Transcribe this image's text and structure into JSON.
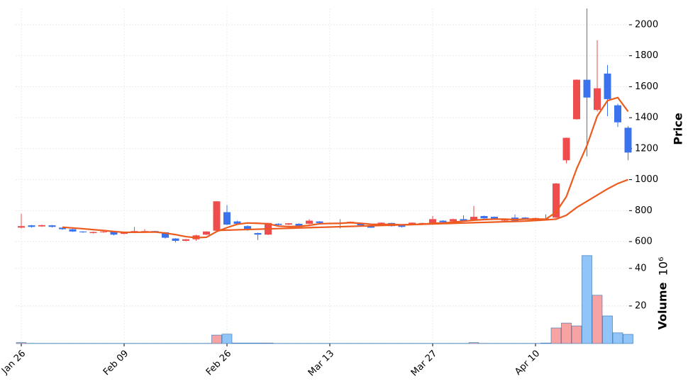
{
  "chart_data": {
    "type": "candlestick",
    "categories": [
      "Jan 26",
      null,
      null,
      null,
      null,
      null,
      null,
      null,
      null,
      null,
      "Feb 09",
      null,
      null,
      null,
      null,
      null,
      null,
      null,
      null,
      null,
      "Feb 26",
      null,
      null,
      null,
      null,
      null,
      null,
      null,
      null,
      null,
      "Mar 13",
      null,
      null,
      null,
      null,
      null,
      null,
      null,
      null,
      null,
      "Mar 27",
      null,
      null,
      null,
      null,
      null,
      null,
      null,
      null,
      null,
      "Apr 10",
      null,
      null,
      null,
      null,
      null,
      null,
      null,
      null,
      null
    ],
    "open": [
      690,
      705,
      698,
      705,
      690,
      680,
      665,
      655,
      660,
      662,
      650,
      662,
      665,
      668,
      660,
      620,
      605,
      615,
      645,
      670,
      790,
      730,
      700,
      655,
      645,
      715,
      710,
      715,
      715,
      730,
      718,
      720,
      722,
      715,
      705,
      705,
      720,
      705,
      712,
      715,
      720,
      735,
      730,
      745,
      740,
      765,
      760,
      735,
      755,
      755,
      742,
      748,
      755,
      1125,
      1390,
      1645,
      1450,
      1685,
      1480,
      1335
    ],
    "high": [
      780,
      708,
      710,
      708,
      692,
      682,
      667,
      664,
      668,
      664,
      662,
      695,
      680,
      670,
      662,
      622,
      617,
      645,
      668,
      862,
      835,
      735,
      705,
      658,
      722,
      718,
      720,
      718,
      745,
      732,
      722,
      745,
      730,
      718,
      708,
      724,
      722,
      708,
      724,
      722,
      765,
      738,
      748,
      770,
      830,
      768,
      762,
      748,
      775,
      758,
      755,
      775,
      978,
      1272,
      1648,
      2105,
      1900,
      1740,
      1490,
      1345
    ],
    "low": [
      685,
      690,
      695,
      692,
      676,
      662,
      657,
      652,
      657,
      640,
      647,
      660,
      662,
      659,
      620,
      595,
      602,
      605,
      642,
      668,
      705,
      712,
      670,
      610,
      642,
      705,
      706,
      692,
      712,
      718,
      715,
      685,
      719,
      702,
      687,
      702,
      697,
      692,
      709,
      712,
      717,
      722,
      727,
      732,
      737,
      747,
      742,
      732,
      732,
      739,
      739,
      737,
      752,
      1105,
      1388,
      1150,
      1440,
      1410,
      1340,
      1125
    ],
    "close": [
      700,
      695,
      706,
      695,
      680,
      665,
      660,
      662,
      665,
      645,
      660,
      668,
      668,
      662,
      625,
      605,
      615,
      640,
      665,
      860,
      710,
      715,
      680,
      645,
      720,
      708,
      718,
      695,
      735,
      720,
      720,
      722,
      728,
      705,
      690,
      722,
      700,
      695,
      722,
      720,
      745,
      725,
      745,
      735,
      760,
      750,
      745,
      745,
      735,
      742,
      752,
      740,
      975,
      1270,
      1645,
      1530,
      1590,
      1520,
      1370,
      1175
    ],
    "up_color": "#ef4d4d",
    "down_color": "#3b73ef",
    "ylim": [
      550,
      2105
    ],
    "yticks": [
      600,
      800,
      1000,
      1200,
      1400,
      1600,
      1800,
      2000
    ],
    "ylabel": "Price",
    "grid": true,
    "moving_averages": [
      {
        "color": "#ec5a1e",
        "values": [
          null,
          null,
          null,
          null,
          693,
          688,
          683,
          677,
          672,
          665,
          660,
          660,
          661,
          662,
          655,
          645,
          632,
          625,
          628,
          665,
          690,
          712,
          720,
          718,
          715,
          700,
          697,
          698,
          705,
          715,
          717,
          718,
          722,
          718,
          712,
          710,
          712,
          708,
          710,
          712,
          718,
          720,
          725,
          732,
          738,
          742,
          745,
          745,
          742,
          745,
          745,
          745,
          790,
          890,
          1070,
          1220,
          1410,
          1510,
          1530,
          1440
        ]
      },
      {
        "color": "#ec5a1e",
        "values": [
          null,
          null,
          null,
          null,
          null,
          null,
          null,
          null,
          null,
          null,
          null,
          null,
          null,
          null,
          null,
          null,
          null,
          null,
          null,
          672,
          674,
          676,
          678,
          680,
          682,
          684,
          686,
          688,
          690,
          692,
          694,
          696,
          698,
          700,
          702,
          704,
          706,
          708,
          710,
          712,
          714,
          716,
          718,
          720,
          722,
          724,
          726,
          728,
          730,
          732,
          736,
          740,
          745,
          770,
          820,
          860,
          900,
          940,
          975,
          1000
        ]
      }
    ],
    "volume": {
      "values": [
        0.5,
        0.1,
        0.1,
        0.1,
        0.1,
        0.1,
        0.1,
        0.1,
        0.1,
        0.1,
        0.1,
        0.1,
        0.1,
        0.1,
        0.1,
        0.1,
        0.1,
        0.1,
        0.1,
        4.5,
        5,
        0.3,
        0.3,
        0.3,
        0.3,
        0.1,
        0.1,
        0.1,
        0.1,
        0.1,
        0.1,
        0.1,
        0.1,
        0.1,
        0.1,
        0.1,
        0.1,
        0.1,
        0.1,
        0.1,
        0.1,
        0.1,
        0.1,
        0.1,
        0.5,
        0.1,
        0.1,
        0.1,
        0.1,
        0.1,
        0.1,
        0.3,
        8.3,
        10.9,
        9.4,
        46.8,
        25.7,
        14.7,
        5.7,
        4.9
      ],
      "ylim": [
        0,
        49
      ],
      "yticks": [
        20,
        40
      ],
      "ylabel": "Volume",
      "offset_label": "10⁶",
      "up_color": "#f7a3a3",
      "down_color": "#91c5f7",
      "edge_color": "#2f6fb0"
    }
  }
}
